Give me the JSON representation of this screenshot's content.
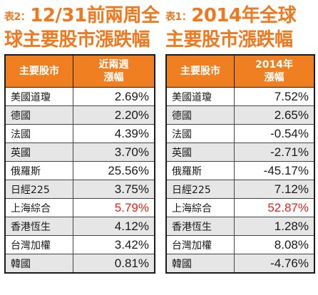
{
  "tables": [
    {
      "tag": "表2：",
      "title_line1": "12/31前兩周全",
      "title_line2": "球主要股市漲跌幅",
      "col1": "主要股市",
      "col2_line1": "近兩週",
      "col2_line2": "漲幅",
      "rows": [
        {
          "name": "美國道瓊",
          "value": "2.69%"
        },
        {
          "name": "德國",
          "value": "2.20%"
        },
        {
          "name": "法國",
          "value": "4.39%"
        },
        {
          "name": "英國",
          "value": "3.70%"
        },
        {
          "name": "俄羅斯",
          "value": "25.56%"
        },
        {
          "name": "日經225",
          "value": "3.75%"
        },
        {
          "name": "上海綜合",
          "value": "5.79%"
        },
        {
          "name": "香港恆生",
          "value": "4.12%"
        },
        {
          "name": "台灣加權",
          "value": "3.42%"
        },
        {
          "name": "韓國",
          "value": "0.81%"
        }
      ]
    },
    {
      "tag": "表1：",
      "title_line1": "2014年全球",
      "title_line2": "主要股市漲跌幅",
      "col1": "主要股市",
      "col2_line1": "2014年",
      "col2_line2": "漲幅",
      "rows": [
        {
          "name": "美國道瓊",
          "value": "7.52%"
        },
        {
          "name": "德國",
          "value": "2.65%"
        },
        {
          "name": "法國",
          "value": "-0.54%"
        },
        {
          "name": "英國",
          "value": "-2.71%"
        },
        {
          "name": "俄羅斯",
          "value": "-45.17%"
        },
        {
          "name": "日經225",
          "value": "7.12%"
        },
        {
          "name": "上海綜合",
          "value": "52.87%"
        },
        {
          "name": "香港恆生",
          "value": "1.28%"
        },
        {
          "name": "台灣加權",
          "value": "8.08%"
        },
        {
          "name": "韓國",
          "value": "-4.76%"
        }
      ]
    }
  ],
  "colors": {
    "title": "#f0781e",
    "header_bg": "#f07f22",
    "highlight": "#e8221a",
    "alt_row": "#e6e6e6"
  }
}
